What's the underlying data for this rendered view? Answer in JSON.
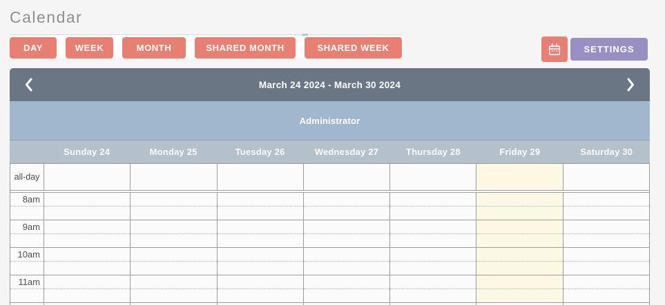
{
  "page": {
    "title": "Calendar"
  },
  "toolbar": {
    "view_buttons": [
      {
        "id": "day",
        "label": "DAY"
      },
      {
        "id": "week",
        "label": "WEEK"
      },
      {
        "id": "month",
        "label": "MONTH"
      },
      {
        "id": "shared-month",
        "label": "SHARED MONTH"
      },
      {
        "id": "shared-week",
        "label": "SHARED WEEK"
      }
    ],
    "mini_calendar_icon": "calendar-icon",
    "settings_label": "SETTINGS"
  },
  "calendar": {
    "nav": {
      "prev_icon": "chevron-left-icon",
      "next_icon": "chevron-right-icon",
      "title": "March 24 2024 - March 30 2024"
    },
    "resource_label": "Administrator",
    "day_headers": [
      "Sunday 24",
      "Monday 25",
      "Tuesday 26",
      "Wednesday 27",
      "Thursday 28",
      "Friday 29",
      "Saturday 30"
    ],
    "today_column": "Friday 29",
    "today_index": 5,
    "allday_label": "all-day",
    "time_labels": [
      "8am",
      "9am",
      "10am",
      "11am"
    ],
    "events": []
  },
  "colors": {
    "accent_salmon": "#e87f73",
    "settings_purple": "#998fc2",
    "navbar_slate": "#6a7683",
    "resource_blue": "#a0b7cd",
    "day_header_blue_gray": "#b4c0ca",
    "today_highlight": "#fcf8e3"
  }
}
